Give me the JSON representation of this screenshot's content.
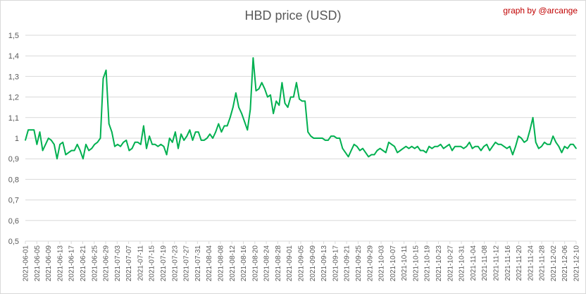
{
  "chart_data": {
    "type": "line",
    "title": "HBD price (USD)",
    "credit": "graph by @arcange",
    "xlabel": "",
    "ylabel": "",
    "ylim": [
      0.5,
      1.5
    ],
    "yticks": [
      "0,5",
      "0,6",
      "0,7",
      "0,8",
      "0,9",
      "1",
      "1,1",
      "1,2",
      "1,3",
      "1,4",
      "1,5"
    ],
    "grid": true,
    "legend": "none",
    "line_color": "#00b050",
    "x_tick_labels": [
      "2021-06-01",
      "2021-06-05",
      "2021-06-09",
      "2021-06-13",
      "2021-06-17",
      "2021-06-21",
      "2021-06-25",
      "2021-06-29",
      "2021-07-03",
      "2021-07-07",
      "2021-07-11",
      "2021-07-15",
      "2021-07-19",
      "2021-07-23",
      "2021-07-27",
      "2021-07-31",
      "2021-08-04",
      "2021-08-08",
      "2021-08-12",
      "2021-08-16",
      "2021-08-20",
      "2021-08-24",
      "2021-08-28",
      "2021-09-01",
      "2021-09-05",
      "2021-09-09",
      "2021-09-13",
      "2021-09-17",
      "2021-09-21",
      "2021-09-25",
      "2021-09-29",
      "2021-10-03",
      "2021-10-07",
      "2021-10-11",
      "2021-10-15",
      "2021-10-19",
      "2021-10-23",
      "2021-10-27",
      "2021-10-31",
      "2021-11-04",
      "2021-11-08",
      "2021-11-12",
      "2021-11-16",
      "2021-11-20",
      "2021-11-24",
      "2021-11-28",
      "2021-12-02",
      "2021-12-06",
      "2021-12-10"
    ],
    "series": [
      {
        "x_start": "2021-06-01",
        "x_end": "2021-12-10",
        "values": [
          0.99,
          1.04,
          1.04,
          1.04,
          0.97,
          1.03,
          0.94,
          0.97,
          1.0,
          0.99,
          0.97,
          0.9,
          0.97,
          0.98,
          0.92,
          0.93,
          0.94,
          0.94,
          0.97,
          0.94,
          0.9,
          0.97,
          0.94,
          0.95,
          0.97,
          0.98,
          1.0,
          1.29,
          1.33,
          1.07,
          1.03,
          0.96,
          0.97,
          0.96,
          0.98,
          0.99,
          0.94,
          0.95,
          0.98,
          0.98,
          0.97,
          1.06,
          0.95,
          1.01,
          0.97,
          0.97,
          0.96,
          0.97,
          0.96,
          0.92,
          1.0,
          0.98,
          1.03,
          0.95,
          1.02,
          0.99,
          1.01,
          1.04,
          0.99,
          1.03,
          1.03,
          0.99,
          0.99,
          1.0,
          1.02,
          1.0,
          1.03,
          1.07,
          1.03,
          1.06,
          1.06,
          1.1,
          1.15,
          1.22,
          1.15,
          1.12,
          1.08,
          1.04,
          1.14,
          1.39,
          1.23,
          1.24,
          1.27,
          1.24,
          1.2,
          1.21,
          1.12,
          1.18,
          1.16,
          1.27,
          1.17,
          1.15,
          1.2,
          1.2,
          1.27,
          1.19,
          1.18,
          1.18,
          1.03,
          1.01,
          1.0,
          1.0,
          1.0,
          1.0,
          0.99,
          0.99,
          1.01,
          1.01,
          1.0,
          1.0,
          0.95,
          0.93,
          0.91,
          0.94,
          0.97,
          0.96,
          0.94,
          0.95,
          0.93,
          0.91,
          0.92,
          0.92,
          0.94,
          0.95,
          0.94,
          0.93,
          0.98,
          0.97,
          0.96,
          0.93,
          0.94,
          0.95,
          0.96,
          0.95,
          0.96,
          0.95,
          0.96,
          0.94,
          0.94,
          0.93,
          0.96,
          0.95,
          0.96,
          0.96,
          0.97,
          0.95,
          0.96,
          0.97,
          0.94,
          0.96,
          0.96,
          0.96,
          0.95,
          0.96,
          0.98,
          0.95,
          0.96,
          0.96,
          0.94,
          0.96,
          0.97,
          0.94,
          0.96,
          0.98,
          0.97,
          0.97,
          0.96,
          0.95,
          0.96,
          0.92,
          0.96,
          1.01,
          1.0,
          0.98,
          0.99,
          1.04,
          1.1,
          0.98,
          0.95,
          0.96,
          0.98,
          0.97,
          0.97,
          1.01,
          0.98,
          0.96,
          0.93,
          0.96,
          0.95,
          0.97,
          0.97,
          0.95
        ]
      }
    ]
  }
}
